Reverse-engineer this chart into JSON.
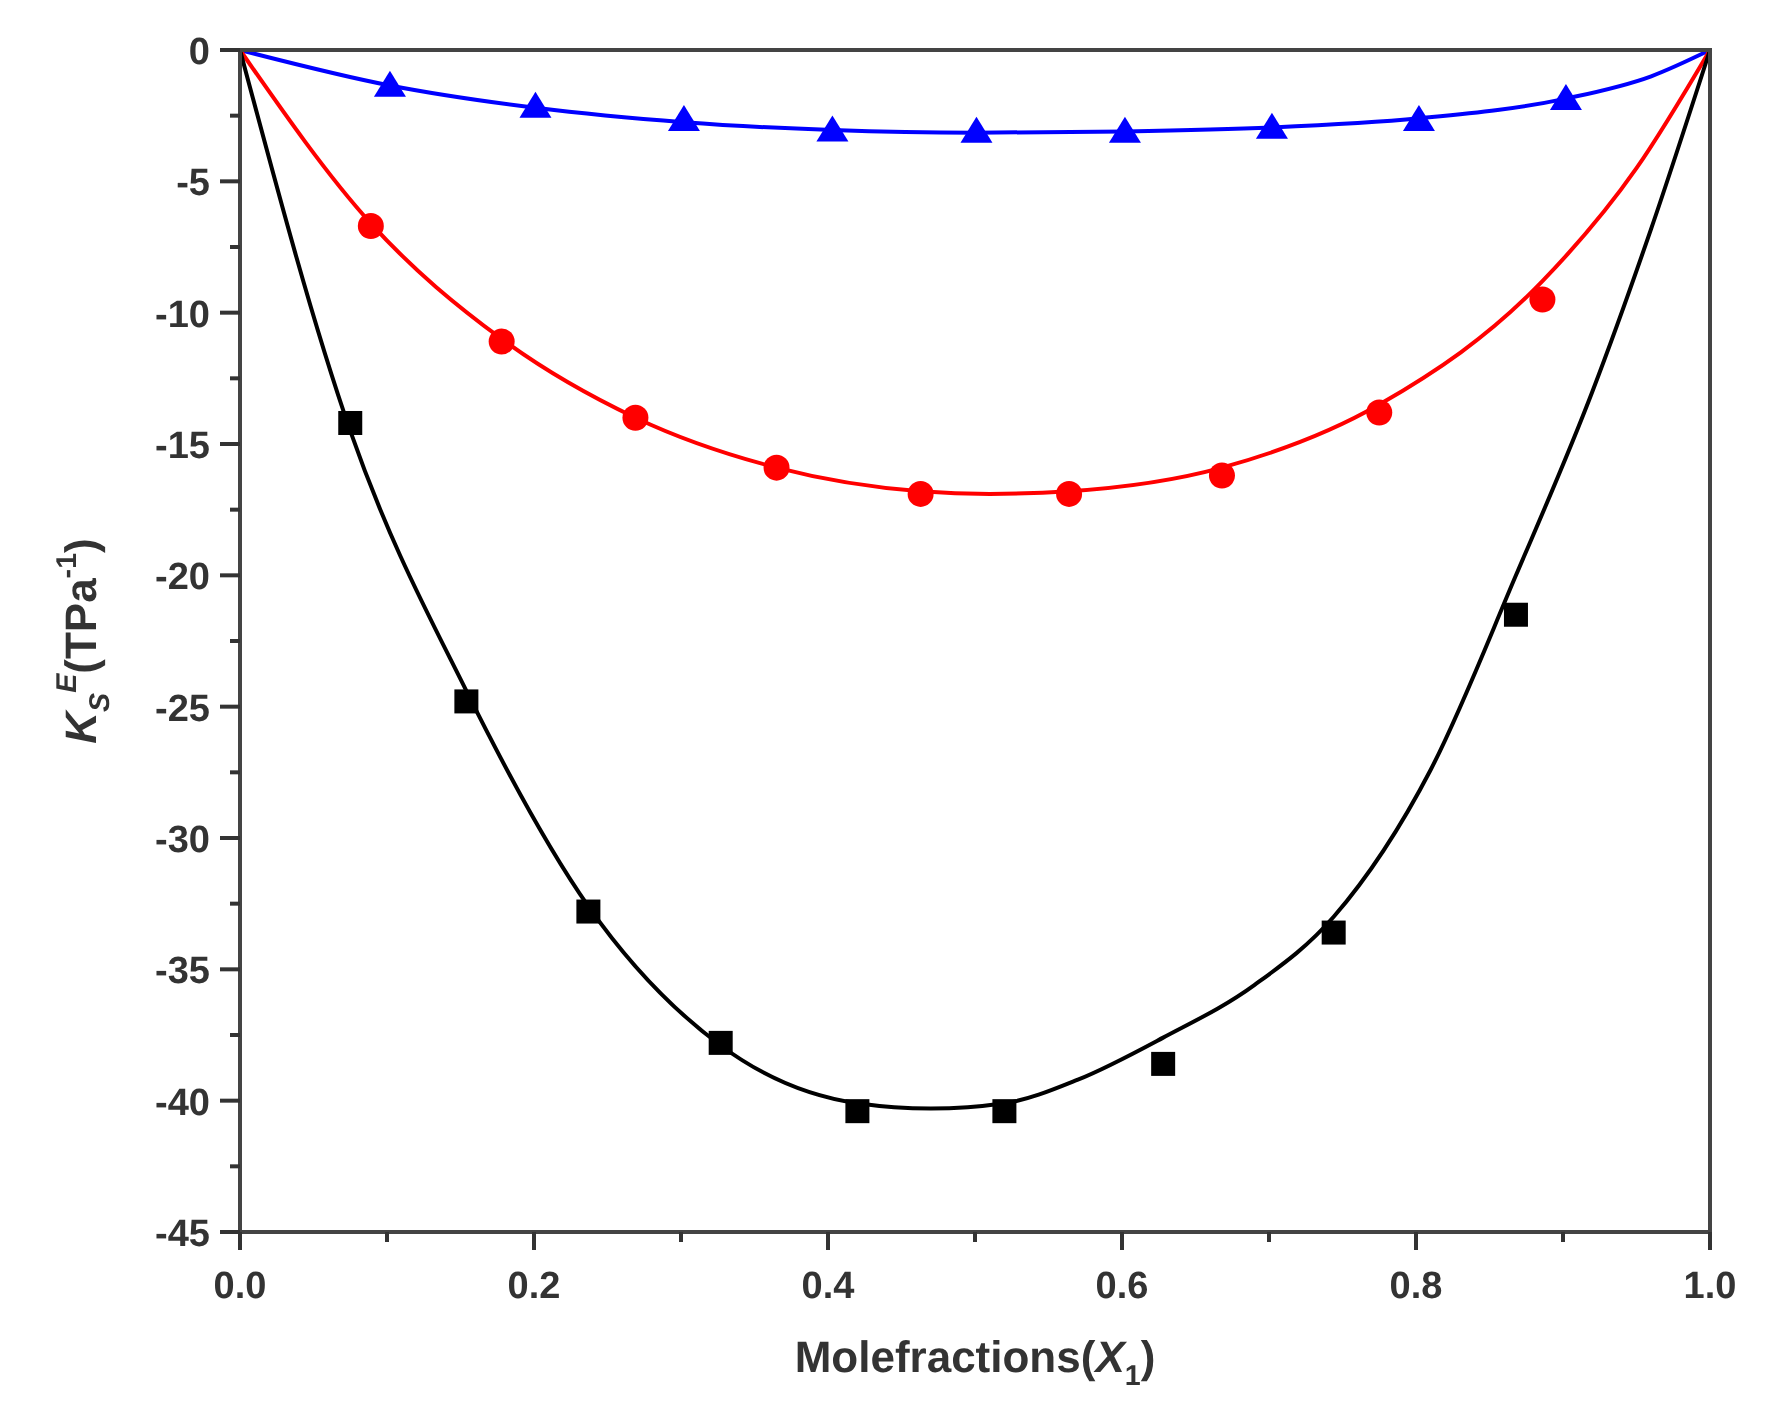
{
  "chart_data": {
    "type": "scatter",
    "xlabel": "Molefractions(X$_{1}$)",
    "ylabel": "K$_{S}$$^{E}$(TPa$^{-1}$)",
    "xlim": [
      0,
      1
    ],
    "ylim": [
      -45,
      0
    ],
    "xticks": [
      {
        "value": 0,
        "label": "0.0"
      },
      {
        "value": 0.1,
        "label": null
      },
      {
        "value": 0.2,
        "label": "0.2"
      },
      {
        "value": 0.3,
        "label": null
      },
      {
        "value": 0.4,
        "label": "0.4"
      },
      {
        "value": 0.5,
        "label": null
      },
      {
        "value": 0.6,
        "label": "0.6"
      },
      {
        "value": 0.7,
        "label": null
      },
      {
        "value": 0.8,
        "label": "0.8"
      },
      {
        "value": 0.9,
        "label": null
      },
      {
        "value": 1,
        "label": "1.0"
      }
    ],
    "yticks": [
      0,
      {
        "value": -2.5,
        "label": null
      },
      -5,
      {
        "value": -7.5,
        "label": null
      },
      -10,
      {
        "value": -12.5,
        "label": null
      },
      -15,
      {
        "value": -17.5,
        "label": null
      },
      -20,
      {
        "value": -22.5,
        "label": null
      },
      -25,
      {
        "value": -27.5,
        "label": null
      },
      -30,
      {
        "value": -32.5,
        "label": null
      },
      -35,
      {
        "value": -37.5,
        "label": null
      },
      -40,
      {
        "value": -42.5,
        "label": null
      },
      -45
    ],
    "grid": false,
    "series": [
      {
        "type": "scatter",
        "marker": "square",
        "color": "#000000",
        "x": [
          0.075,
          0.154,
          0.237,
          0.327,
          0.42,
          0.52,
          0.628,
          0.744,
          0.868
        ],
        "values": [
          -14.2,
          -24.8,
          -32.8,
          -37.8,
          -40.4,
          -40.4,
          -38.6,
          -33.6,
          -21.5
        ]
      },
      {
        "type": "scatter",
        "marker": "circle",
        "color": "#ff0000",
        "x": [
          0.089,
          0.178,
          0.269,
          0.365,
          0.463,
          0.564,
          0.668,
          0.775,
          0.886
        ],
        "values": [
          -6.7,
          -11.1,
          -14.0,
          -15.9,
          -16.9,
          -16.9,
          -16.2,
          -13.8,
          -9.5
        ]
      },
      {
        "type": "scatter",
        "marker": "triangle",
        "color": "#0000ff",
        "x": [
          0.102,
          0.201,
          0.302,
          0.403,
          0.501,
          0.602,
          0.702,
          0.802,
          0.902
        ],
        "values": [
          -1.4,
          -2.2,
          -2.7,
          -3.1,
          -3.15,
          -3.15,
          -3.0,
          -2.7,
          -1.9
        ]
      },
      {
        "type": "line",
        "marker": "none",
        "color": "#000000",
        "x": [
          0,
          0.075,
          0.154,
          0.237,
          0.327,
          0.42,
          0.47,
          0.52,
          0.57,
          0.628,
          0.69,
          0.744,
          0.81,
          0.868,
          0.92,
          0.96,
          1
        ],
        "values": [
          0,
          -14.5,
          -24.4,
          -32.6,
          -37.9,
          -40.1,
          -40.3,
          -40.1,
          -39.2,
          -37.6,
          -35.6,
          -33.0,
          -27.4,
          -20.0,
          -13.0,
          -6.8,
          0
        ]
      },
      {
        "type": "line",
        "marker": "none",
        "color": "#ff0000",
        "x": [
          0,
          0.089,
          0.178,
          0.269,
          0.365,
          0.463,
          0.51,
          0.564,
          0.668,
          0.775,
          0.886,
          0.95,
          1
        ],
        "values": [
          0,
          -6.6,
          -11.0,
          -14.0,
          -15.9,
          -16.8,
          -16.9,
          -16.8,
          -15.9,
          -13.5,
          -8.8,
          -4.5,
          0
        ]
      },
      {
        "type": "line",
        "marker": "none",
        "color": "#0000ff",
        "x": [
          0,
          0.102,
          0.201,
          0.302,
          0.403,
          0.5,
          0.602,
          0.702,
          0.802,
          0.902,
          0.96,
          1
        ],
        "values": [
          0,
          -1.35,
          -2.2,
          -2.75,
          -3.05,
          -3.15,
          -3.1,
          -2.95,
          -2.6,
          -1.85,
          -1.0,
          0
        ]
      }
    ]
  }
}
